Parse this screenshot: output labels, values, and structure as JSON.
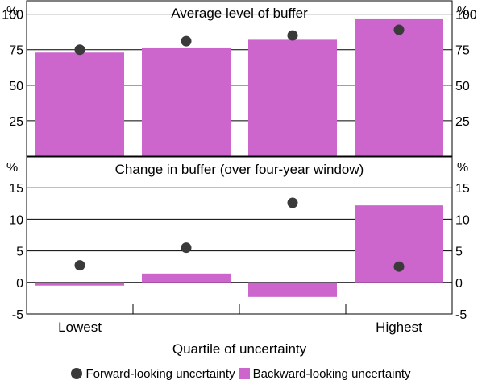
{
  "chart_data": {
    "type": "bar",
    "categories": [
      "Lowest",
      "",
      "",
      "Highest"
    ],
    "xlabel": "Quartile of uncertainty",
    "unit": "%",
    "legend": {
      "placement": "bottom",
      "items": [
        {
          "label": "Forward-looking uncertainty",
          "marker": "dot",
          "color": "#3a3a3a"
        },
        {
          "label": "Backward-looking uncertainty",
          "marker": "bar",
          "color": "#cc66cc"
        }
      ]
    },
    "panels": [
      {
        "title": "Average level of buffer",
        "ylim": [
          0,
          110
        ],
        "ticks": [
          25,
          50,
          75,
          100
        ],
        "series": [
          {
            "name": "Backward-looking uncertainty",
            "type": "bar",
            "values": [
              73,
              76,
              82,
              97
            ]
          },
          {
            "name": "Forward-looking uncertainty",
            "type": "dot",
            "values": [
              75,
              81,
              85,
              89
            ]
          }
        ]
      },
      {
        "title": "Change in buffer (over four-year window)",
        "ylim": [
          -5,
          20
        ],
        "ticks": [
          -5,
          0,
          5,
          10,
          15
        ],
        "series": [
          {
            "name": "Backward-looking uncertainty",
            "type": "bar",
            "values": [
              -0.5,
              1.4,
              -2.3,
              12.2
            ]
          },
          {
            "name": "Forward-looking uncertainty",
            "type": "dot",
            "values": [
              2.7,
              5.5,
              12.6,
              2.5
            ]
          }
        ]
      }
    ],
    "colors": {
      "bar": "#cc66cc",
      "dot": "#3a3a3a",
      "frame": "#000000",
      "grid": "#000000"
    }
  }
}
